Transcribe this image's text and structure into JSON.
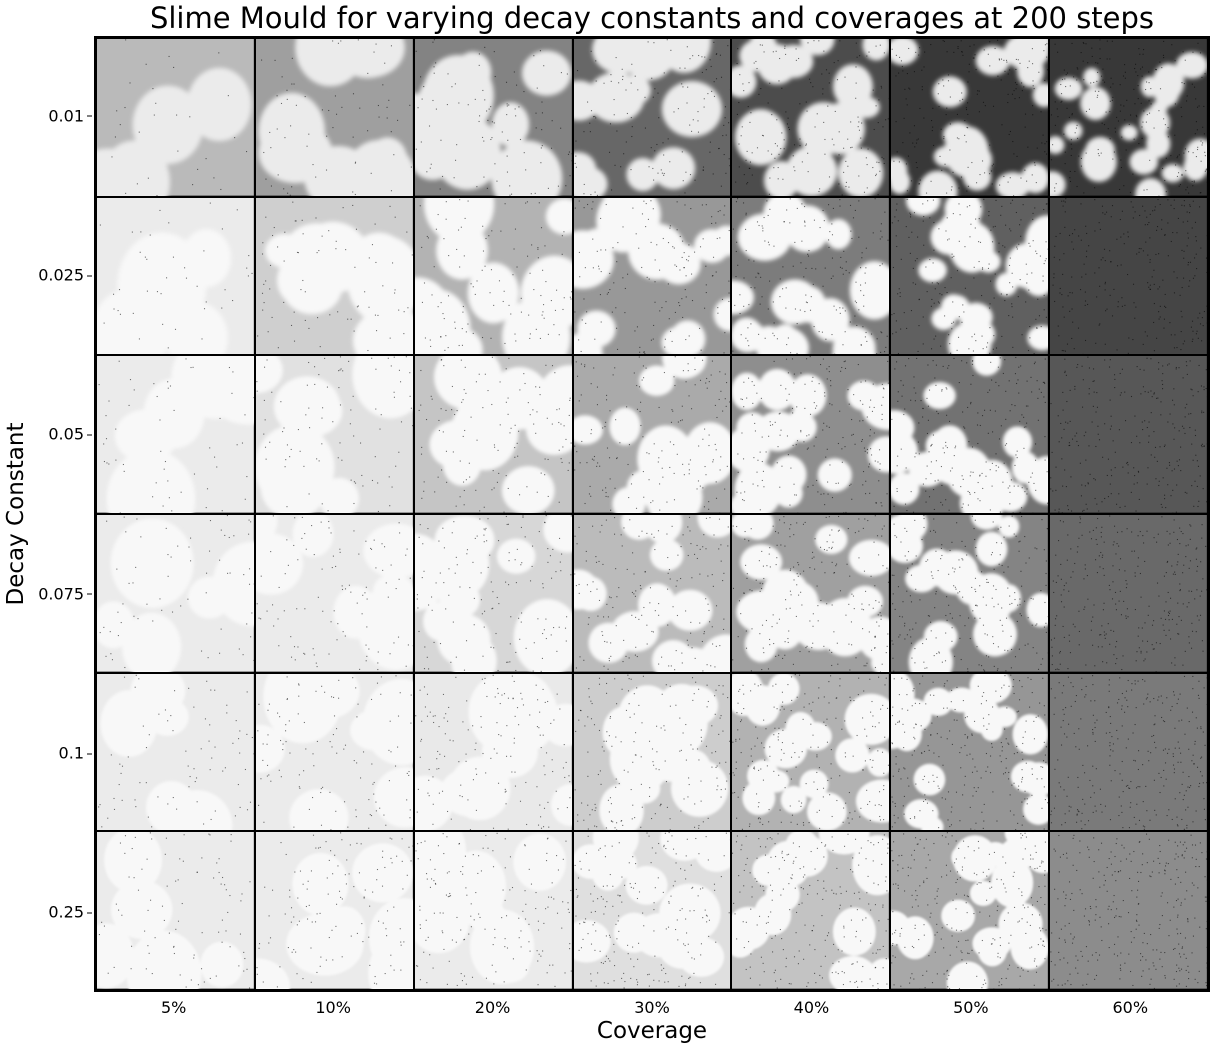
{
  "chart_data": {
    "type": "heatmap",
    "title": "Slime Mould for varying decay constants and coverages at 200 steps",
    "xlabel": "Coverage",
    "ylabel": "Decay Constant",
    "x_categories": [
      "5%",
      "10%",
      "20%",
      "30%",
      "40%",
      "50%",
      "60%"
    ],
    "y_categories": [
      "0.01",
      "0.025",
      "0.05",
      "0.075",
      "0.1",
      "0.25"
    ],
    "grid": "7 columns x 6 rows of grayscale simulation snapshots",
    "colormap": "grayscale (white = empty cells, dark = slime trails)"
  }
}
